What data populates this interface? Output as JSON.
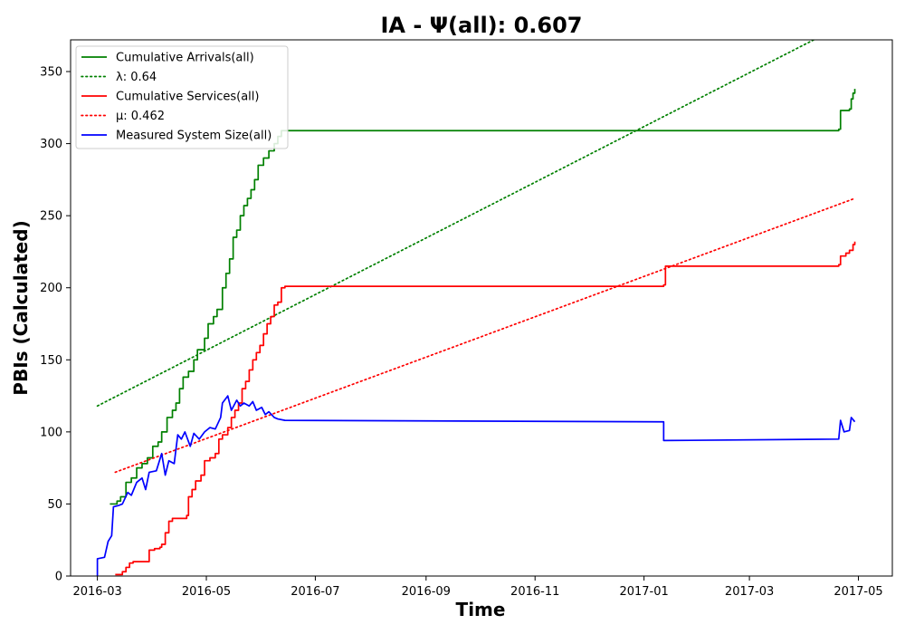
{
  "chart_data": {
    "type": "line",
    "title": "IA -  Ψ(all): 0.607",
    "xlabel": "Time",
    "ylabel": "PBIs (Calculated)",
    "xlim": [
      "2016-02-15",
      "2017-05-20"
    ],
    "ylim": [
      0,
      372
    ],
    "x_ticks": [
      "2016-03",
      "2016-05",
      "2016-07",
      "2016-09",
      "2016-11",
      "2017-01",
      "2017-03",
      "2017-05"
    ],
    "y_ticks": [
      0,
      50,
      100,
      150,
      200,
      250,
      300,
      350
    ],
    "grid": false,
    "legend_position": "top-left",
    "series": [
      {
        "name": "Cumulative Arrivals(all)",
        "color": "#008000",
        "style": "solid",
        "step": true,
        "points": [
          [
            "2016-03-08",
            50
          ],
          [
            "2016-03-12",
            52
          ],
          [
            "2016-03-14",
            55
          ],
          [
            "2016-03-17",
            65
          ],
          [
            "2016-03-20",
            68
          ],
          [
            "2016-03-23",
            75
          ],
          [
            "2016-03-26",
            78
          ],
          [
            "2016-03-29",
            82
          ],
          [
            "2016-04-01",
            90
          ],
          [
            "2016-04-04",
            93
          ],
          [
            "2016-04-06",
            100
          ],
          [
            "2016-04-09",
            110
          ],
          [
            "2016-04-12",
            115
          ],
          [
            "2016-04-14",
            120
          ],
          [
            "2016-04-16",
            130
          ],
          [
            "2016-04-18",
            138
          ],
          [
            "2016-04-21",
            142
          ],
          [
            "2016-04-24",
            150
          ],
          [
            "2016-04-26",
            157
          ],
          [
            "2016-04-30",
            165
          ],
          [
            "2016-05-02",
            175
          ],
          [
            "2016-05-05",
            180
          ],
          [
            "2016-05-07",
            185
          ],
          [
            "2016-05-10",
            200
          ],
          [
            "2016-05-12",
            210
          ],
          [
            "2016-05-14",
            220
          ],
          [
            "2016-05-16",
            235
          ],
          [
            "2016-05-18",
            240
          ],
          [
            "2016-05-20",
            250
          ],
          [
            "2016-05-22",
            257
          ],
          [
            "2016-05-24",
            262
          ],
          [
            "2016-05-26",
            268
          ],
          [
            "2016-05-28",
            275
          ],
          [
            "2016-05-30",
            285
          ],
          [
            "2016-06-02",
            290
          ],
          [
            "2016-06-05",
            295
          ],
          [
            "2016-06-08",
            300
          ],
          [
            "2016-06-10",
            305
          ],
          [
            "2016-06-12",
            309
          ],
          [
            "2017-04-20",
            310
          ],
          [
            "2017-04-21",
            323
          ],
          [
            "2017-04-26",
            324
          ],
          [
            "2017-04-27",
            331
          ],
          [
            "2017-04-28",
            335
          ],
          [
            "2017-04-29",
            338
          ]
        ]
      },
      {
        "name": "λ: 0.64",
        "color": "#008000",
        "style": "dotted",
        "points": [
          [
            "2016-03-01",
            118
          ],
          [
            "2017-04-06",
            372
          ]
        ]
      },
      {
        "name": "Cumulative Services(all)",
        "color": "#ff0000",
        "style": "solid",
        "step": true,
        "points": [
          [
            "2016-03-11",
            1
          ],
          [
            "2016-03-15",
            3
          ],
          [
            "2016-03-17",
            6
          ],
          [
            "2016-03-19",
            9
          ],
          [
            "2016-03-21",
            10
          ],
          [
            "2016-03-30",
            18
          ],
          [
            "2016-04-02",
            19
          ],
          [
            "2016-04-05",
            20
          ],
          [
            "2016-04-06",
            22
          ],
          [
            "2016-04-08",
            30
          ],
          [
            "2016-04-10",
            38
          ],
          [
            "2016-04-12",
            40
          ],
          [
            "2016-04-20",
            42
          ],
          [
            "2016-04-21",
            55
          ],
          [
            "2016-04-23",
            60
          ],
          [
            "2016-04-25",
            66
          ],
          [
            "2016-04-28",
            70
          ],
          [
            "2016-04-30",
            80
          ],
          [
            "2016-05-03",
            82
          ],
          [
            "2016-05-06",
            85
          ],
          [
            "2016-05-08",
            95
          ],
          [
            "2016-05-10",
            98
          ],
          [
            "2016-05-13",
            103
          ],
          [
            "2016-05-15",
            110
          ],
          [
            "2016-05-17",
            115
          ],
          [
            "2016-05-19",
            120
          ],
          [
            "2016-05-21",
            130
          ],
          [
            "2016-05-23",
            135
          ],
          [
            "2016-05-25",
            143
          ],
          [
            "2016-05-27",
            150
          ],
          [
            "2016-05-29",
            155
          ],
          [
            "2016-05-31",
            160
          ],
          [
            "2016-06-02",
            168
          ],
          [
            "2016-06-04",
            175
          ],
          [
            "2016-06-06",
            180
          ],
          [
            "2016-06-08",
            188
          ],
          [
            "2016-06-10",
            190
          ],
          [
            "2016-06-12",
            200
          ],
          [
            "2016-06-14",
            201
          ],
          [
            "2017-01-12",
            202
          ],
          [
            "2017-01-13",
            215
          ],
          [
            "2017-04-20",
            216
          ],
          [
            "2017-04-21",
            222
          ],
          [
            "2017-04-24",
            224
          ],
          [
            "2017-04-26",
            226
          ],
          [
            "2017-04-28",
            230
          ],
          [
            "2017-04-29",
            232
          ]
        ]
      },
      {
        "name": "μ: 0.462",
        "color": "#ff0000",
        "style": "dotted",
        "points": [
          [
            "2016-03-11",
            72
          ],
          [
            "2017-04-29",
            262
          ]
        ]
      },
      {
        "name": "Measured System Size(all)",
        "color": "#0000ff",
        "style": "solid",
        "points": [
          [
            "2016-03-01",
            0
          ],
          [
            "2016-03-01",
            12
          ],
          [
            "2016-03-05",
            13
          ],
          [
            "2016-03-07",
            24
          ],
          [
            "2016-03-09",
            28
          ],
          [
            "2016-03-10",
            48
          ],
          [
            "2016-03-13",
            49
          ],
          [
            "2016-03-15",
            50
          ],
          [
            "2016-03-18",
            58
          ],
          [
            "2016-03-20",
            56
          ],
          [
            "2016-03-23",
            65
          ],
          [
            "2016-03-26",
            68
          ],
          [
            "2016-03-28",
            60
          ],
          [
            "2016-03-30",
            72
          ],
          [
            "2016-04-03",
            73
          ],
          [
            "2016-04-06",
            85
          ],
          [
            "2016-04-08",
            70
          ],
          [
            "2016-04-10",
            80
          ],
          [
            "2016-04-13",
            78
          ],
          [
            "2016-04-15",
            98
          ],
          [
            "2016-04-17",
            95
          ],
          [
            "2016-04-19",
            100
          ],
          [
            "2016-04-22",
            90
          ],
          [
            "2016-04-24",
            99
          ],
          [
            "2016-04-27",
            95
          ],
          [
            "2016-04-30",
            100
          ],
          [
            "2016-05-03",
            103
          ],
          [
            "2016-05-06",
            102
          ],
          [
            "2016-05-09",
            110
          ],
          [
            "2016-05-10",
            120
          ],
          [
            "2016-05-13",
            125
          ],
          [
            "2016-05-15",
            115
          ],
          [
            "2016-05-18",
            122
          ],
          [
            "2016-05-20",
            118
          ],
          [
            "2016-05-22",
            120
          ],
          [
            "2016-05-25",
            118
          ],
          [
            "2016-05-27",
            121
          ],
          [
            "2016-05-29",
            115
          ],
          [
            "2016-06-01",
            117
          ],
          [
            "2016-06-03",
            112
          ],
          [
            "2016-06-05",
            114
          ],
          [
            "2016-06-08",
            110
          ],
          [
            "2016-06-10",
            109
          ],
          [
            "2016-06-14",
            108
          ],
          [
            "2017-01-12",
            107
          ],
          [
            "2017-01-12",
            94
          ],
          [
            "2017-04-20",
            95
          ],
          [
            "2017-04-21",
            108
          ],
          [
            "2017-04-23",
            100
          ],
          [
            "2017-04-26",
            101
          ],
          [
            "2017-04-27",
            110
          ],
          [
            "2017-04-29",
            107
          ]
        ]
      }
    ]
  }
}
